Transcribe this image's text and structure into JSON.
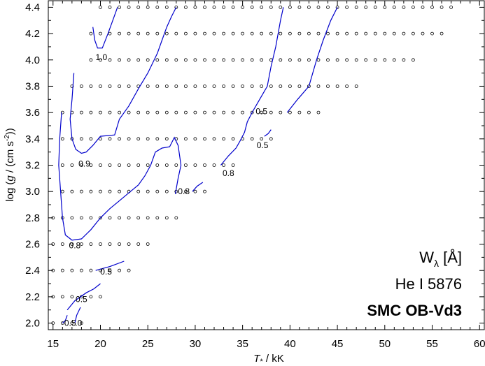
{
  "chart_data": {
    "type": "line",
    "xlabel": "T* / kK",
    "ylabel": "log (g / (cm s⁻²))",
    "xlim": [
      14.5,
      60.5
    ],
    "ylim": [
      1.95,
      4.45
    ],
    "xticks": [
      "15",
      "20",
      "25",
      "30",
      "35",
      "40",
      "45",
      "50",
      "55",
      "60"
    ],
    "yticks": [
      "2.0",
      "2.2",
      "2.4",
      "2.6",
      "2.8",
      "3.0",
      "3.2",
      "3.4",
      "3.6",
      "3.8",
      "4.0",
      "4.2",
      "4.4"
    ],
    "grid": false,
    "annotation": {
      "line1_main": "W",
      "line1_sub": "λ",
      "line1_unit": "[Å]",
      "line2": "He I 5876",
      "line3": "SMC OB-Vd3"
    },
    "model_grid": [
      {
        "logg": 4.4,
        "t_min": 20,
        "t_max": 57
      },
      {
        "logg": 4.2,
        "t_min": 19,
        "t_max": 56
      },
      {
        "logg": 4.0,
        "t_min": 19,
        "t_max": 53
      },
      {
        "logg": 3.8,
        "t_min": 17,
        "t_max": 47
      },
      {
        "logg": 3.6,
        "t_min": 16,
        "t_max": 43
      },
      {
        "logg": 3.4,
        "t_min": 16,
        "t_max": 38
      },
      {
        "logg": 3.2,
        "t_min": 16,
        "t_max": 34
      },
      {
        "logg": 3.0,
        "t_min": 16,
        "t_max": 31
      },
      {
        "logg": 2.8,
        "t_min": 15,
        "t_max": 28
      },
      {
        "logg": 2.6,
        "t_min": 15,
        "t_max": 25
      },
      {
        "logg": 2.4,
        "t_min": 15,
        "t_max": 23
      },
      {
        "logg": 2.2,
        "t_min": 15,
        "t_max": 20
      },
      {
        "logg": 2.0,
        "t_min": 15,
        "t_max": 18
      }
    ],
    "contours": [
      {
        "level": "1.0",
        "points": [
          [
            19.2,
            4.25
          ],
          [
            19.4,
            4.15
          ],
          [
            19.7,
            4.09
          ],
          [
            20.2,
            4.09
          ],
          [
            20.8,
            4.2
          ],
          [
            21.3,
            4.3
          ],
          [
            21.8,
            4.4
          ]
        ]
      },
      {
        "level": "0.9",
        "points": [
          [
            17.2,
            3.9
          ],
          [
            17.0,
            3.7
          ],
          [
            16.8,
            3.55
          ],
          [
            17.0,
            3.4
          ],
          [
            17.4,
            3.32
          ],
          [
            18.0,
            3.29
          ],
          [
            18.5,
            3.3
          ],
          [
            19.2,
            3.35
          ],
          [
            20.0,
            3.42
          ],
          [
            21.5,
            3.43
          ],
          [
            22.0,
            3.55
          ],
          [
            23.0,
            3.65
          ],
          [
            24.0,
            3.78
          ],
          [
            25.0,
            3.9
          ],
          [
            26.0,
            4.05
          ],
          [
            26.5,
            4.15
          ],
          [
            27.0,
            4.25
          ],
          [
            27.5,
            4.33
          ],
          [
            28.0,
            4.4
          ]
        ]
      },
      {
        "level": "0.8",
        "points": [
          [
            15.9,
            3.6
          ],
          [
            15.7,
            3.4
          ],
          [
            15.6,
            3.2
          ],
          [
            15.8,
            3.0
          ],
          [
            16.0,
            2.8
          ],
          [
            16.3,
            2.67
          ],
          [
            17.0,
            2.63
          ],
          [
            18.0,
            2.64
          ],
          [
            19.0,
            2.71
          ],
          [
            20.0,
            2.8
          ],
          [
            21.0,
            2.87
          ],
          [
            22.0,
            2.93
          ],
          [
            23.0,
            2.99
          ],
          [
            24.0,
            3.05
          ],
          [
            24.7,
            3.12
          ],
          [
            25.3,
            3.2
          ],
          [
            25.8,
            3.3
          ],
          [
            26.5,
            3.33
          ],
          [
            27.3,
            3.34
          ],
          [
            27.8,
            3.41
          ],
          [
            28.2,
            3.35
          ],
          [
            28.5,
            3.2
          ],
          [
            28.2,
            3.1
          ],
          [
            27.9,
            2.98
          ]
        ]
      },
      {
        "level": "0.8",
        "points": [
          [
            29.7,
            3.0
          ],
          [
            30.2,
            3.04
          ],
          [
            30.8,
            3.07
          ]
        ]
      },
      {
        "level": "0.8",
        "points": [
          [
            32.7,
            3.2
          ],
          [
            33.5,
            3.27
          ],
          [
            34.3,
            3.33
          ],
          [
            34.7,
            3.38
          ],
          [
            35.2,
            3.45
          ],
          [
            35.5,
            3.53
          ],
          [
            36.0,
            3.6
          ],
          [
            36.8,
            3.7
          ],
          [
            37.6,
            3.8
          ],
          [
            38.0,
            3.95
          ],
          [
            38.5,
            4.1
          ],
          [
            39.0,
            4.3
          ],
          [
            39.3,
            4.4
          ]
        ]
      },
      {
        "level": "0.5",
        "points": [
          [
            37.3,
            3.42
          ],
          [
            37.7,
            3.44
          ],
          [
            38.0,
            3.47
          ]
        ]
      },
      {
        "level": "0.5",
        "points": [
          [
            39.7,
            3.6
          ],
          [
            40.8,
            3.7
          ],
          [
            42.0,
            3.8
          ],
          [
            42.8,
            4.0
          ],
          [
            43.5,
            4.15
          ],
          [
            44.3,
            4.3
          ],
          [
            45.0,
            4.4
          ]
        ]
      },
      {
        "level": "0.5",
        "points": [
          [
            19.5,
            2.4
          ],
          [
            21.0,
            2.43
          ],
          [
            22.5,
            2.47
          ]
        ]
      },
      {
        "level": "0.5",
        "points": [
          [
            16.5,
            2.1
          ],
          [
            17.3,
            2.17
          ],
          [
            18.5,
            2.23
          ],
          [
            19.3,
            2.26
          ],
          [
            20.0,
            2.3
          ]
        ]
      },
      {
        "level": "0.5",
        "points": [
          [
            16.0,
            2.0
          ],
          [
            16.3,
            2.02
          ],
          [
            16.5,
            2.06
          ]
        ]
      },
      {
        "level": "0.5",
        "points": [
          [
            17.3,
            2.0
          ],
          [
            17.5,
            2.06
          ],
          [
            17.9,
            2.12
          ]
        ]
      }
    ],
    "contour_labels": [
      {
        "text": "1.0",
        "x": 20.1,
        "y": 4.02
      },
      {
        "text": "0.9",
        "x": 18.3,
        "y": 3.21
      },
      {
        "text": "0.8",
        "x": 17.3,
        "y": 2.59
      },
      {
        "text": "0.8",
        "x": 28.8,
        "y": 3.0
      },
      {
        "text": "0.8",
        "x": 33.5,
        "y": 3.14
      },
      {
        "text": "0.5",
        "x": 37.0,
        "y": 3.61
      },
      {
        "text": "0.5",
        "x": 37.1,
        "y": 3.35
      },
      {
        "text": "0.5",
        "x": 20.6,
        "y": 2.39
      },
      {
        "text": "0.5",
        "x": 18.0,
        "y": 2.18
      },
      {
        "text": "0.5",
        "x": 16.8,
        "y": 2.0
      },
      {
        "text": ".0",
        "x": 17.7,
        "y": 2.0
      }
    ],
    "colors": {
      "contour": "#0000cc",
      "marker": "#000000",
      "axis": "#000000"
    }
  }
}
